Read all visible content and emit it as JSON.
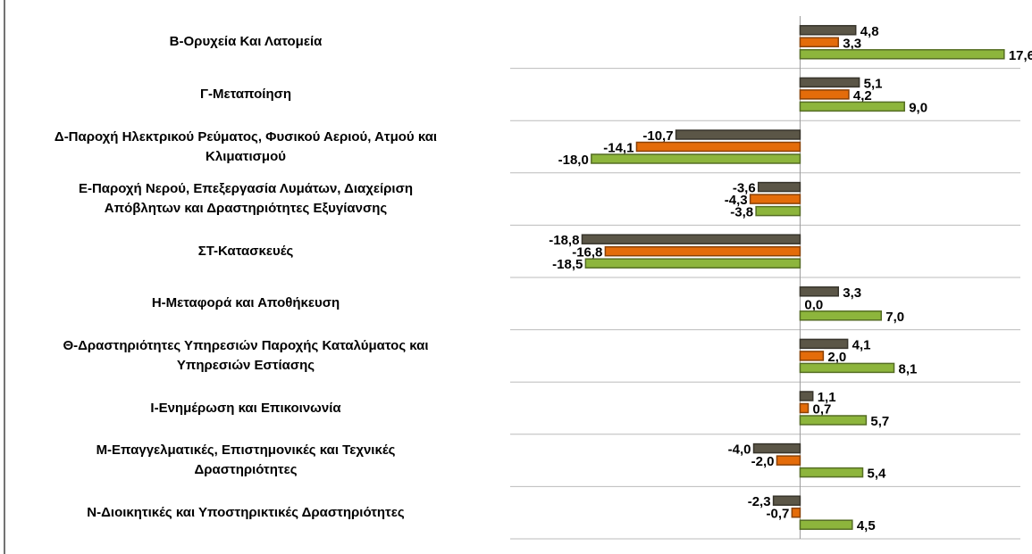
{
  "chart_data": {
    "type": "bar",
    "orientation": "horizontal",
    "categories": [
      "Β-Ορυχεία Και Λατομεία",
      "Γ-Μεταποίηση",
      "Δ-Παροχή Ηλεκτρικού Ρεύματος, Φυσικού Αεριού, Ατμού και\nΚλιματισμού",
      "Ε-Παροχή Νερού, Επεξεργασία Λυμάτων, Διαχείριση\nΑπόβλητων και Δραστηριότητες Εξυγίανσης",
      "ΣΤ-Κατασκευές",
      "Η-Μεταφορά και Αποθήκευση",
      "Θ-Δραστηριότητες Υπηρεσιών Παροχής Καταλύματος και\nΥπηρεσιών Εστίασης",
      "Ι-Ενημέρωση και Επικοινωνία",
      "Μ-Επαγγελματικές, Επιστημονικές και Τεχνικές\nΔραστηριότητες",
      "Ν-Διοικητικές και Υποστηρικτικές Δραστηριότητες"
    ],
    "series": [
      {
        "color": "#5b5647",
        "values": [
          4.8,
          5.1,
          -10.7,
          -3.6,
          -18.8,
          3.3,
          4.1,
          1.1,
          -4.0,
          -2.3
        ],
        "value_labels": [
          "4,8",
          "5,1",
          "-10,7",
          "-3,6",
          "-18,8",
          "3,3",
          "4,1",
          "1,1",
          "-4,0",
          "-2,3"
        ]
      },
      {
        "color": "#e46c0a",
        "values": [
          3.3,
          4.2,
          -14.1,
          -4.3,
          -16.8,
          0.0,
          2.0,
          0.7,
          -2.0,
          -0.7
        ],
        "value_labels": [
          "3,3",
          "4,2",
          "-14,1",
          "-4,3",
          "-16,8",
          "0,0",
          "2,0",
          "0,7",
          "-2,0",
          "-0,7"
        ]
      },
      {
        "color": "#8db53c",
        "values": [
          17.6,
          9.0,
          -18.0,
          -3.8,
          -18.5,
          7.0,
          8.1,
          5.7,
          5.4,
          4.5
        ],
        "value_labels": [
          "17,6",
          "9,0",
          "-18,0",
          "-3,8",
          "-18,5",
          "7,0",
          "8,1",
          "5,7",
          "5,4",
          "4,5"
        ]
      }
    ],
    "xlim": [
      -25,
      19
    ],
    "grid": true
  }
}
